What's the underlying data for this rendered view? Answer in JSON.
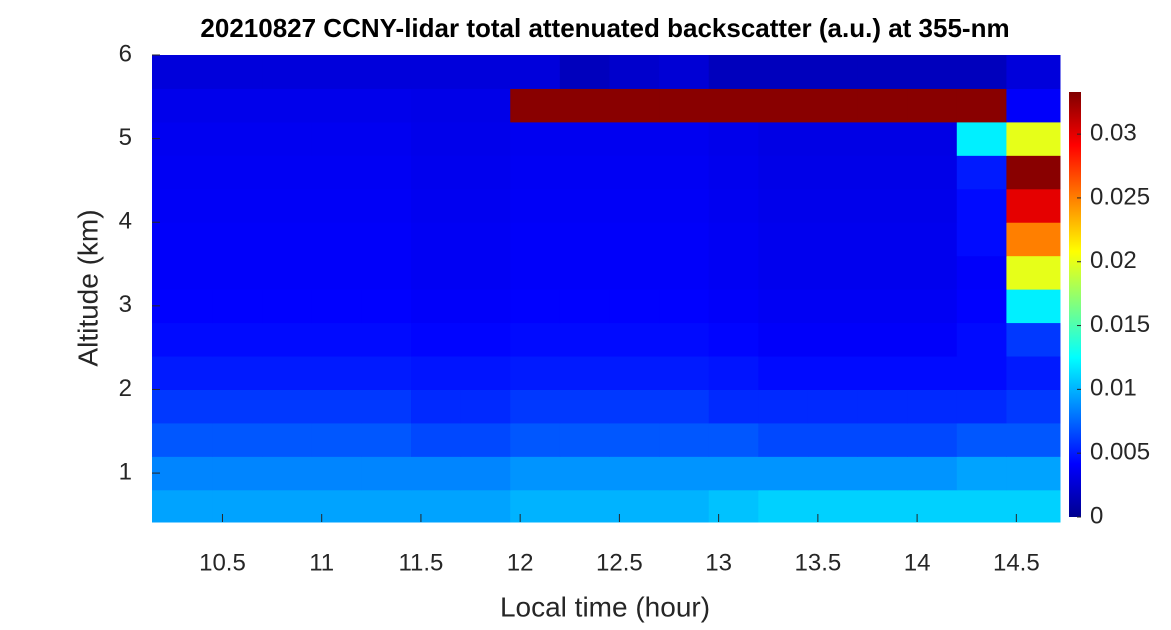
{
  "chart_data": {
    "type": "heatmap",
    "title": "20210827 CCNY-lidar total attenuated backscatter (a.u.) at 355-nm",
    "x_label": "Local time (hour)",
    "y_label": "Altitude (km)",
    "xlim": [
      10.145,
      14.72
    ],
    "ylim": [
      0.415,
      6
    ],
    "xticks": [
      10.5,
      11,
      11.5,
      12,
      12.5,
      13,
      13.5,
      14,
      14.5
    ],
    "yticks": [
      1,
      2,
      3,
      4,
      5,
      6
    ],
    "colormap": "jet",
    "clim": [
      0,
      0.0333
    ],
    "cticks": [
      0,
      0.005,
      0.01,
      0.015,
      0.02,
      0.025,
      0.03
    ],
    "xbins": [
      10.145,
      10.45,
      10.7,
      10.95,
      11.2,
      11.45,
      11.7,
      11.95,
      12.2,
      12.45,
      12.7,
      12.95,
      13.2,
      13.45,
      13.7,
      13.95,
      14.2,
      14.45,
      14.72
    ],
    "ybins": [
      0.415,
      0.8,
      1.2,
      1.6,
      2.0,
      2.4,
      2.8,
      3.2,
      3.6,
      4.0,
      4.4,
      4.8,
      5.2,
      5.6,
      6.0
    ],
    "z": [
      [
        0.0095,
        0.0095,
        0.0095,
        0.0095,
        0.0095,
        0.0095,
        0.0095,
        0.01,
        0.01,
        0.01,
        0.01,
        0.0105,
        0.011,
        0.011,
        0.011,
        0.011,
        0.011,
        0.011
      ],
      [
        0.0085,
        0.0085,
        0.0085,
        0.0085,
        0.0085,
        0.0085,
        0.0085,
        0.009,
        0.009,
        0.009,
        0.009,
        0.009,
        0.009,
        0.009,
        0.009,
        0.009,
        0.0095,
        0.0095
      ],
      [
        0.007,
        0.007,
        0.007,
        0.007,
        0.007,
        0.0065,
        0.0065,
        0.007,
        0.007,
        0.007,
        0.007,
        0.007,
        0.0065,
        0.0065,
        0.0065,
        0.0065,
        0.007,
        0.007
      ],
      [
        0.006,
        0.006,
        0.006,
        0.006,
        0.006,
        0.0055,
        0.0055,
        0.006,
        0.006,
        0.006,
        0.006,
        0.0055,
        0.0055,
        0.0055,
        0.0055,
        0.0055,
        0.0055,
        0.006
      ],
      [
        0.005,
        0.005,
        0.005,
        0.005,
        0.005,
        0.0048,
        0.0048,
        0.005,
        0.005,
        0.005,
        0.005,
        0.0048,
        0.0045,
        0.0045,
        0.0045,
        0.0045,
        0.0045,
        0.005
      ],
      [
        0.0045,
        0.0045,
        0.0045,
        0.0045,
        0.0045,
        0.0043,
        0.0043,
        0.0045,
        0.0045,
        0.0045,
        0.0045,
        0.0043,
        0.004,
        0.004,
        0.004,
        0.004,
        0.0045,
        0.006
      ],
      [
        0.0042,
        0.0042,
        0.0042,
        0.0042,
        0.0042,
        0.004,
        0.004,
        0.0042,
        0.0042,
        0.0042,
        0.0042,
        0.004,
        0.0038,
        0.0038,
        0.0038,
        0.0038,
        0.0042,
        0.012
      ],
      [
        0.004,
        0.004,
        0.004,
        0.004,
        0.004,
        0.0038,
        0.0038,
        0.004,
        0.004,
        0.004,
        0.004,
        0.0038,
        0.0036,
        0.0036,
        0.0036,
        0.0036,
        0.004,
        0.02
      ],
      [
        0.004,
        0.004,
        0.004,
        0.004,
        0.004,
        0.0038,
        0.0038,
        0.004,
        0.004,
        0.004,
        0.004,
        0.0038,
        0.0036,
        0.0036,
        0.0036,
        0.0036,
        0.0045,
        0.025
      ],
      [
        0.0039,
        0.0039,
        0.0039,
        0.0039,
        0.0039,
        0.0037,
        0.0037,
        0.0039,
        0.0039,
        0.0039,
        0.0039,
        0.0037,
        0.0035,
        0.0035,
        0.0035,
        0.0035,
        0.0045,
        0.03
      ],
      [
        0.0038,
        0.0038,
        0.0038,
        0.0038,
        0.0038,
        0.0036,
        0.0036,
        0.0038,
        0.0038,
        0.0038,
        0.0038,
        0.0036,
        0.0034,
        0.0034,
        0.0034,
        0.0034,
        0.005,
        0.033
      ],
      [
        0.0037,
        0.0037,
        0.0037,
        0.0037,
        0.0037,
        0.0035,
        0.0035,
        0.0037,
        0.0037,
        0.0037,
        0.0037,
        0.0035,
        0.0033,
        0.0033,
        0.0033,
        0.0033,
        0.012,
        0.02
      ],
      [
        0.0035,
        0.0035,
        0.0035,
        0.0035,
        0.0035,
        0.0034,
        0.0034,
        0.033,
        0.033,
        0.033,
        0.033,
        0.033,
        0.033,
        0.033,
        0.033,
        0.033,
        0.033,
        0.004
      ],
      [
        0.003,
        0.003,
        0.003,
        0.003,
        0.003,
        0.003,
        0.003,
        0.003,
        0.002,
        0.0025,
        0.0028,
        0.002,
        0.002,
        0.002,
        0.002,
        0.002,
        0.002,
        0.003
      ]
    ]
  }
}
